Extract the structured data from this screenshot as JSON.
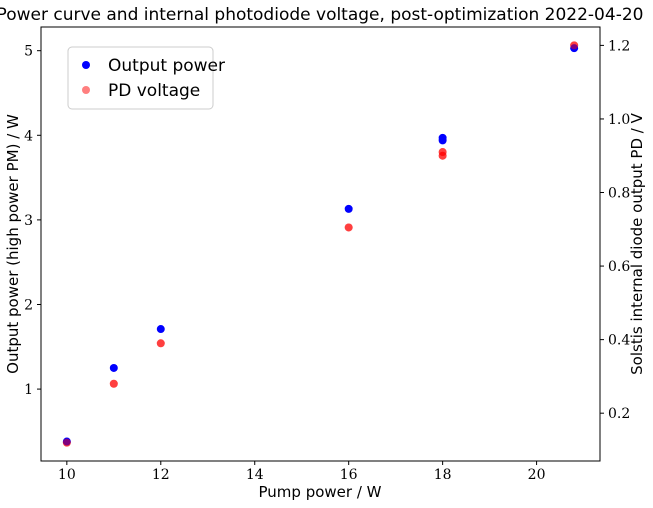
{
  "chart_data": {
    "type": "scatter",
    "title": "Power curve and internal photodiode voltage, post-optimization 2022-04-20",
    "xlabel": "Pump power / W",
    "ylabel": "Output power (high power PM) / W",
    "y2label": "Solstis internal diode output PD / V",
    "xlim": [
      9.45,
      21.35
    ],
    "ylim": [
      0.15,
      5.28
    ],
    "y2lim": [
      0.07,
      1.25
    ],
    "xticks": [
      10,
      12,
      14,
      16,
      18,
      20
    ],
    "yticks": [
      1,
      2,
      3,
      4,
      5
    ],
    "y2ticks": [
      0.2,
      0.4,
      0.6,
      0.8,
      1.0,
      1.2
    ],
    "y2tick_labels": [
      "0.2",
      "0.4",
      "0.6",
      "0.8",
      "1.0",
      "1.2"
    ],
    "grid": false,
    "legend_position": "top-left",
    "series": [
      {
        "name": "Output power",
        "axis": "left",
        "color": "#0000ff",
        "x": [
          10,
          11,
          12,
          16,
          18,
          18,
          20.8
        ],
        "y": [
          0.38,
          1.25,
          1.71,
          3.13,
          3.94,
          3.97,
          5.03
        ]
      },
      {
        "name": "PD voltage",
        "axis": "right",
        "color": "#ff0000",
        "opacity": 0.5,
        "x": [
          10,
          11,
          12,
          16,
          18,
          18,
          20.8
        ],
        "y": [
          0.12,
          0.28,
          0.39,
          0.705,
          0.9,
          0.91,
          1.2
        ]
      }
    ]
  }
}
